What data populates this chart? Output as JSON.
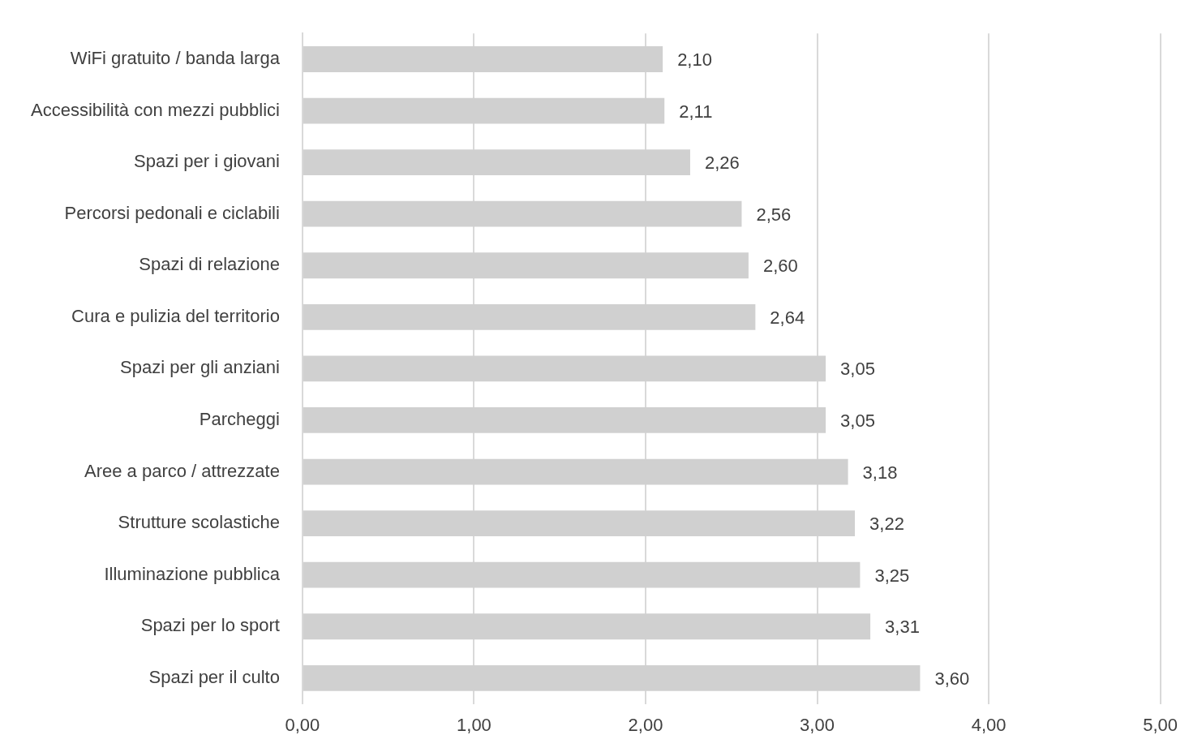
{
  "chart_data": {
    "type": "bar",
    "orientation": "horizontal",
    "categories": [
      "WiFi gratuito / banda larga",
      "Accessibilità con mezzi pubblici",
      "Spazi per i giovani",
      "Percorsi pedonali e ciclabili",
      "Spazi di relazione",
      "Cura e pulizia del territorio",
      "Spazi per gli anziani",
      "Parcheggi",
      "Aree a parco / attrezzate",
      "Strutture scolastiche",
      "Illuminazione pubblica",
      "Spazi per lo sport",
      "Spazi per il culto"
    ],
    "values": [
      2.1,
      2.11,
      2.26,
      2.56,
      2.6,
      2.64,
      3.05,
      3.05,
      3.18,
      3.22,
      3.25,
      3.31,
      3.6
    ],
    "value_labels": [
      "2,10",
      "2,11",
      "2,26",
      "2,56",
      "2,60",
      "2,64",
      "3,05",
      "3,05",
      "3,18",
      "3,22",
      "3,25",
      "3,31",
      "3,60"
    ],
    "color": "#d0d0d0",
    "xlim": [
      0,
      5
    ],
    "xticks": [
      {
        "value": 0,
        "label": "0,00"
      },
      {
        "value": 1,
        "label": "1,00"
      },
      {
        "value": 2,
        "label": "2,00"
      },
      {
        "value": 3,
        "label": "3,00"
      },
      {
        "value": 4,
        "label": "4,00"
      },
      {
        "value": 5,
        "label": "5,00"
      }
    ],
    "grid": "x",
    "legend": false
  }
}
